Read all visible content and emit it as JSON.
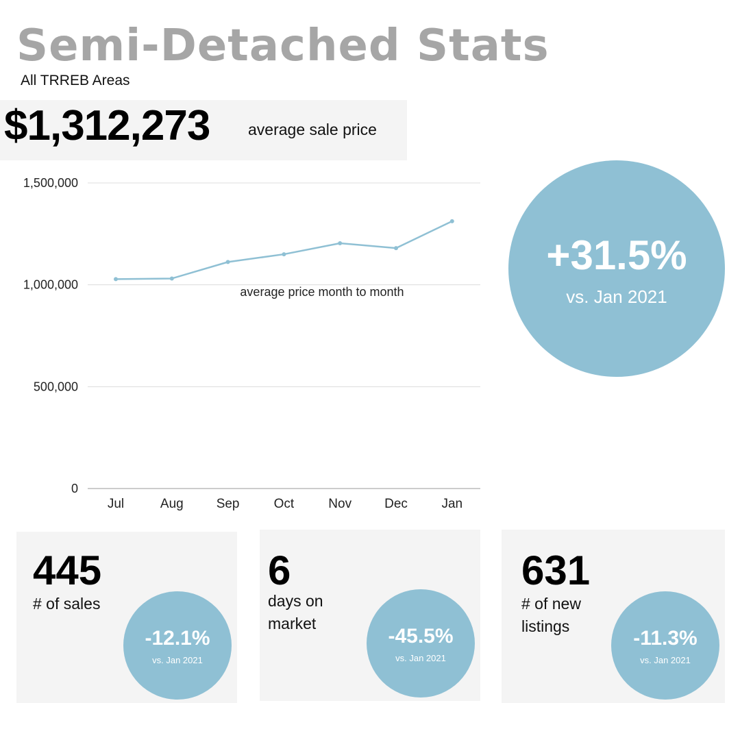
{
  "header": {
    "title": "Semi-Detached Stats",
    "subtitle": "All TRREB Areas"
  },
  "price_panel": {
    "value": "$1,312,273",
    "label": "average sale price"
  },
  "highlight": {
    "change": "+31.5%",
    "comparison": "vs. Jan 2021"
  },
  "chart_data": {
    "type": "line",
    "categories": [
      "Jul",
      "Aug",
      "Sep",
      "Oct",
      "Nov",
      "Dec",
      "Jan"
    ],
    "series": [
      {
        "values": [
          1028000,
          1031000,
          1112000,
          1150000,
          1204000,
          1180000,
          1312273
        ]
      }
    ],
    "annotation": "average price month to month",
    "ylim": [
      0,
      1500000
    ],
    "yticks": [
      0,
      500000,
      1000000,
      1500000
    ],
    "ytick_labels": [
      "0",
      "500,000",
      "1,000,000",
      "1,500,000"
    ],
    "grid": true,
    "line_color": "#8fc0d4"
  },
  "stats": [
    {
      "value": "445",
      "label": "# of sales",
      "change": "-12.1%",
      "comparison": "vs. Jan 2021"
    },
    {
      "value": "6",
      "label": "days on\nmarket",
      "change": "-45.5%",
      "comparison": "vs. Jan 2021"
    },
    {
      "value": "631",
      "label": "# of new\nlistings",
      "change": "-11.3%",
      "comparison": "vs. Jan 2021"
    }
  ],
  "colors": {
    "accent": "#8fc0d4",
    "panel": "#f4f4f4",
    "title": "#a6a6a6"
  }
}
